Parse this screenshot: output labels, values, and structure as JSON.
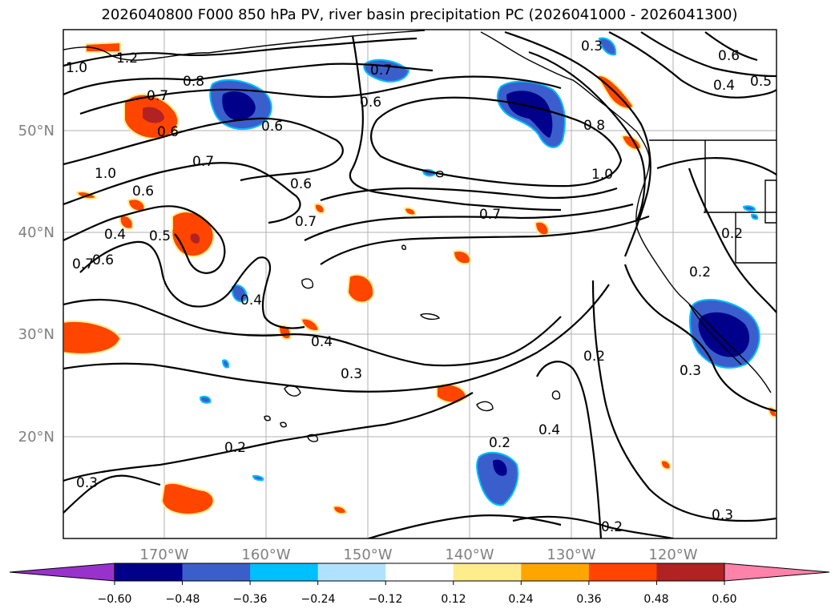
{
  "title": "2026040800 F000 850 hPa PV, river basin precipitation PC (2026041000 - 2026041300)",
  "latitude_labels": [
    "50°N",
    "40°N",
    "30°N",
    "20°N"
  ],
  "longitude_labels": [
    "170°W",
    "160°W",
    "150°W",
    "140°W",
    "130°W",
    "120°W"
  ],
  "contour_labels": [
    "1.2",
    "1.0",
    "0.8",
    "0.7",
    "0.6",
    "0.6",
    "0.7",
    "0.6",
    "0.7",
    "0.6",
    "0.5",
    "0.4",
    "0.6",
    "0.7",
    "1.0",
    "0.6",
    "0.7",
    "0.4",
    "0.4",
    "0.3",
    "0.2",
    "0.3",
    "0.2",
    "0.4",
    "0.2",
    "0.2",
    "0.3",
    "0.3",
    "0.2",
    "0.2",
    "0.6",
    "0.5",
    "0.4",
    "1.0",
    "0.8",
    "0.7",
    "0.3"
  ],
  "colorbar": {
    "colors": [
      "#9932cc",
      "#00008b",
      "#3a5fcd",
      "#00bfff",
      "#b0e2ff",
      "#ffffff",
      "#ffec8b",
      "#ffa500",
      "#ff4500",
      "#b22222",
      "#ff82ab"
    ],
    "tick_labels": [
      "−0.60",
      "−0.48",
      "−0.36",
      "−0.24",
      "−0.12",
      "0.12",
      "0.24",
      "0.36",
      "0.48",
      "0.60"
    ]
  },
  "fill_colors": {
    "neg_strong": "#00008b",
    "neg_mid": "#3a5fcd",
    "neg_light": "#00bfff",
    "pos_light": "#ffec8b",
    "pos_mid": "#ffa500",
    "pos_strong": "#ff4500",
    "pos_max": "#b22222"
  }
}
